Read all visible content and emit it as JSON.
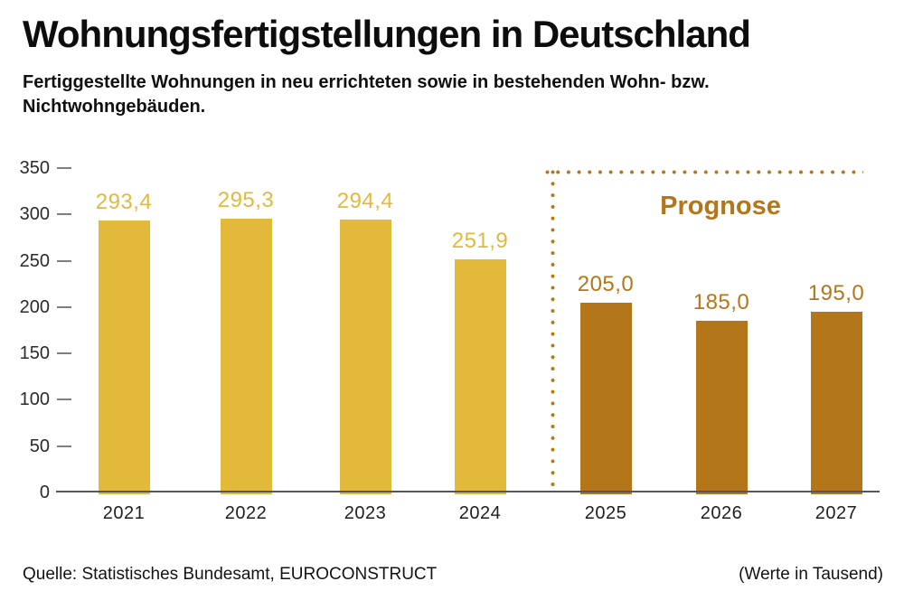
{
  "header": {
    "title": "Wohnungsfertigstellungen in Deutschland",
    "subtitle_line1": "Fertiggestellte Wohnungen in neu errichteten sowie in bestehenden Wohn- bzw.",
    "subtitle_line2": "Nichtwohngebäuden."
  },
  "chart_data": {
    "type": "bar",
    "title": "Wohnungsfertigstellungen in Deutschland",
    "categories": [
      "2021",
      "2022",
      "2023",
      "2024",
      "2025",
      "2026",
      "2027"
    ],
    "values": [
      293.4,
      295.3,
      294.4,
      251.9,
      205.0,
      185.0,
      195.0
    ],
    "value_labels": [
      "293,4",
      "295,3",
      "294,4",
      "251,9",
      "205,0",
      "185,0",
      "195,0"
    ],
    "segments": [
      "actual",
      "actual",
      "actual",
      "actual",
      "forecast",
      "forecast",
      "forecast"
    ],
    "annotation": "Prognose",
    "xlabel": "",
    "ylabel": "",
    "ylim": [
      0,
      350
    ],
    "yticks": [
      0,
      50,
      100,
      150,
      200,
      250,
      300,
      350
    ],
    "grid": false,
    "legend_position": "none",
    "colors": {
      "actual": "#E3B93C",
      "forecast": "#B4761B"
    }
  },
  "footer": {
    "source": "Quelle: Statistisches Bundesamt, EUROCONSTRUCT",
    "unit_note": "(Werte in Tausend)"
  }
}
